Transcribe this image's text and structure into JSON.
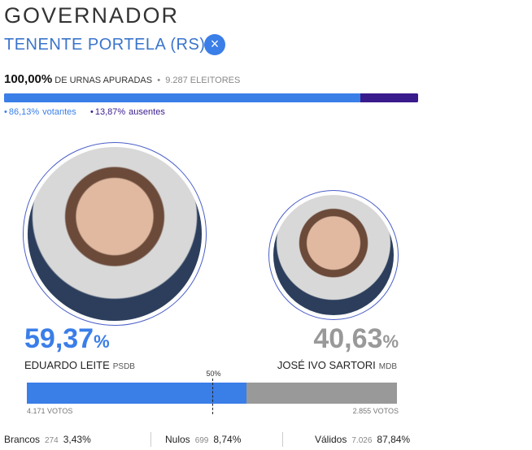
{
  "header": {
    "title": "GOVERNADOR",
    "location": "TENENTE PORTELA (RS)",
    "close": "×"
  },
  "summary": {
    "percent": "100,00%",
    "percent_label": "DE URNAS APURADAS",
    "separator": "•",
    "electors": "9.287",
    "electors_label": "ELEITORES"
  },
  "turnout": [
    {
      "label": "votantes",
      "percent": "86,13%",
      "value": 86.13,
      "color": "#3a7ee8",
      "bullet": "•"
    },
    {
      "label": "ausentes",
      "percent": "13,87%",
      "value": 13.87,
      "color": "#3a1b8c",
      "bullet": "•"
    }
  ],
  "candidates": [
    {
      "name": "EDUARDO LEITE",
      "party": "PSDB",
      "percent": "59,37",
      "percent_sign": "%",
      "value": 59.37,
      "votes": "4.171 VOTOS",
      "color": "#3a7ee8"
    },
    {
      "name": "JOSÉ IVO SARTORI",
      "party": "MDB",
      "percent": "40,63",
      "percent_sign": "%",
      "value": 40.63,
      "votes": "2.855 VOTOS",
      "color": "#999999"
    }
  ],
  "midpoint": {
    "value": 50,
    "label": "50%"
  },
  "footer": [
    {
      "label": "Brancos",
      "count": "274",
      "percent": "3,43%"
    },
    {
      "label": "Nulos",
      "count": "699",
      "percent": "8,74%"
    },
    {
      "label": "Válidos",
      "count": "7.026",
      "percent": "87,84%"
    }
  ]
}
